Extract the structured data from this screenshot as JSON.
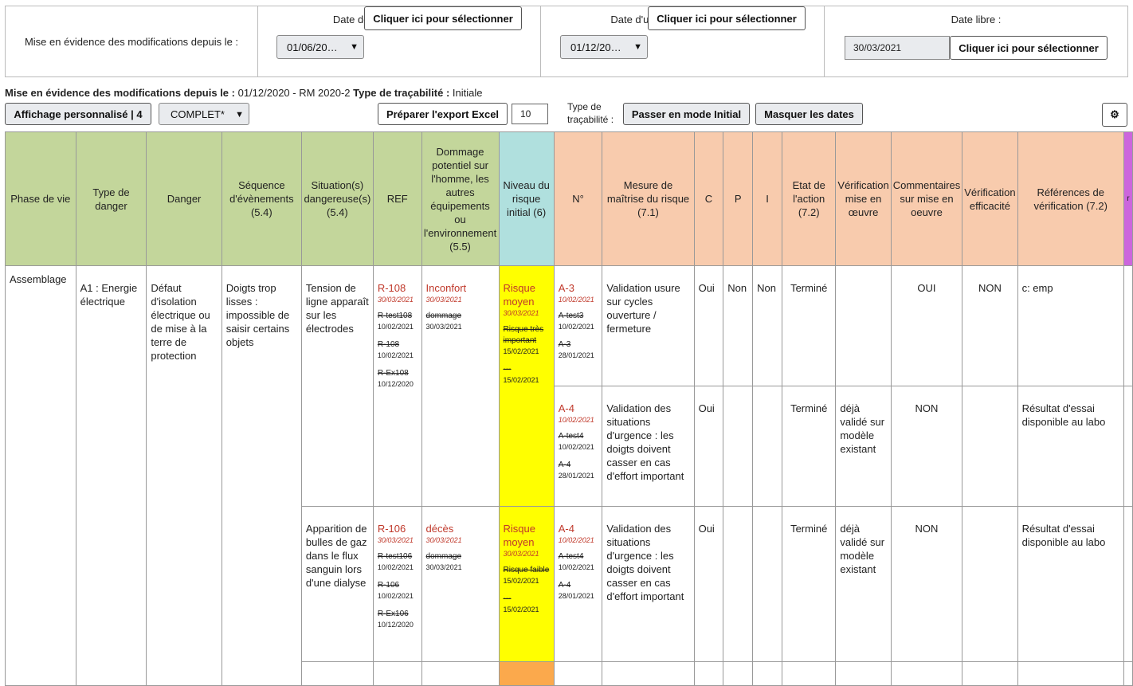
{
  "topbar": {
    "main_label": "Mise en évidence des modifications depuis le :",
    "market": {
      "label": "Date de mise sur le marché :",
      "select": "01/06/20…",
      "button": "Cliquer ici pour sélectionner"
    },
    "meeting": {
      "label": "Date d'une réunion ou version :",
      "select": "01/12/20…",
      "button": "Cliquer ici pour sélectionner"
    },
    "free": {
      "label": "Date libre :",
      "value": "30/03/2021",
      "button": "Cliquer ici pour sélectionner"
    }
  },
  "info": {
    "label1": "Mise en évidence des modifications depuis le :",
    "value1": " 01/12/2020 - RM 2020-2 ",
    "label2": "Type de traçabilité :",
    "value2": " Initiale"
  },
  "toolbar": {
    "custom_display": "Affichage personnalisé | 4",
    "complete": "COMPLET*",
    "export": "Préparer l'export Excel",
    "count": "10",
    "trace_label_1": "Type de",
    "trace_label_2": "traçabilité :",
    "initial_mode": "Passer en mode Initial",
    "hide_dates": "Masquer les dates",
    "settings_icon": "gear-icon"
  },
  "headers": {
    "phase": "Phase de vie",
    "type": "Type de danger",
    "danger": "Danger",
    "sequence": "Séquence d'évènements (5.4)",
    "situation": "Situation(s) dangereuse(s) (5.4)",
    "ref": "REF",
    "damage": "Dommage potentiel sur l'homme, les autres équipements ou l'environnement (5.5)",
    "level": "Niveau du risque initial (6)",
    "num": "N°",
    "measure": "Mesure de maîtrise du risque (7.1)",
    "c": "C",
    "p": "P",
    "i": "I",
    "state": "Etat de l'action (7.2)",
    "verif": "Vérification mise en œuvre",
    "comments": "Commentaires sur mise en oeuvre",
    "efficacy": "Vérification efficacité",
    "refs": "Références de vérification (7.2)",
    "extra": "r"
  },
  "row1": {
    "phase": "Assemblage",
    "type": "A1 : Energie électrique",
    "danger": "Défaut d'isolation électrique ou de mise à la terre de protection",
    "sequence": "Doigts trop lisses : impossible de saisir certains objets",
    "situation": "Tension de ligne apparaît sur les électrodes",
    "ref": {
      "cur": "R-108",
      "cur_date": "30/03/2021",
      "h1": "R-test108",
      "h1d": "10/02/2021",
      "h2": "R-108",
      "h2d": "10/02/2021",
      "h3": "R-Ex108",
      "h3d": "10/12/2020"
    },
    "damage": {
      "cur": "Inconfort",
      "cur_date": "30/03/2021",
      "h1": "dommage",
      "h1d": "30/03/2021"
    },
    "level": {
      "cur": "Risque moyen",
      "cur_date": "30/03/2021",
      "h1": "Risque très important",
      "h1d": "15/02/2021",
      "h2": "---",
      "h2d": "15/02/2021"
    },
    "m1": {
      "num": "A-3",
      "num_date": "10/02/2021",
      "h1": "A-test3",
      "h1d": "10/02/2021",
      "h2": "A-3",
      "h2d": "28/01/2021",
      "measure": "Validation usure sur cycles ouverture / fermeture",
      "c": "Oui",
      "p": "Non",
      "i": "Non",
      "state": "Terminé",
      "verif": "",
      "comments": "OUI",
      "efficacy": "NON",
      "refs": "c: emp"
    },
    "m2": {
      "num": "A-4",
      "num_date": "10/02/2021",
      "h1": "A-test4",
      "h1d": "10/02/2021",
      "h2": "A-4",
      "h2d": "28/01/2021",
      "measure": "Validation des situations d'urgence : les doigts doivent casser en cas d'effort important",
      "c": "Oui",
      "state": "Terminé",
      "verif": "déjà validé sur modèle existant",
      "comments": "NON",
      "refs": "Résultat d'essai disponible au labo"
    }
  },
  "row2": {
    "situation": "Apparition de bulles de gaz dans le flux sanguin lors d'une dialyse",
    "ref": {
      "cur": "R-106",
      "cur_date": "30/03/2021",
      "h1": "R-test106",
      "h1d": "10/02/2021",
      "h2": "R-106",
      "h2d": "10/02/2021",
      "h3": "R-Ex106",
      "h3d": "10/12/2020"
    },
    "damage": {
      "cur": "décès",
      "cur_date": "30/03/2021",
      "h1": "dommage",
      "h1d": "30/03/2021"
    },
    "level": {
      "cur": "Risque moyen",
      "cur_date": "30/03/2021",
      "h1": "Risque faible",
      "h1d": "15/02/2021",
      "h2": "---",
      "h2d": "15/02/2021"
    },
    "m1": {
      "num": "A-4",
      "num_date": "10/02/2021",
      "h1": "A-test4",
      "h1d": "10/02/2021",
      "h2": "A-4",
      "h2d": "28/01/2021",
      "measure": "Validation des situations d'urgence : les doigts doivent casser en cas d'effort important",
      "c": "Oui",
      "state": "Terminé",
      "verif": "déjà validé sur modèle existant",
      "comments": "NON",
      "refs": "Résultat d'essai disponible au labo"
    }
  },
  "colors": {
    "green_header": "#c3d69b",
    "teal_header": "#b0e0de",
    "orange_header": "#f8cbad",
    "purple_header": "#cc66dd",
    "risk_yellow": "#ffff00",
    "risk_orange": "#fba94c",
    "changed_red": "#c0392b"
  }
}
